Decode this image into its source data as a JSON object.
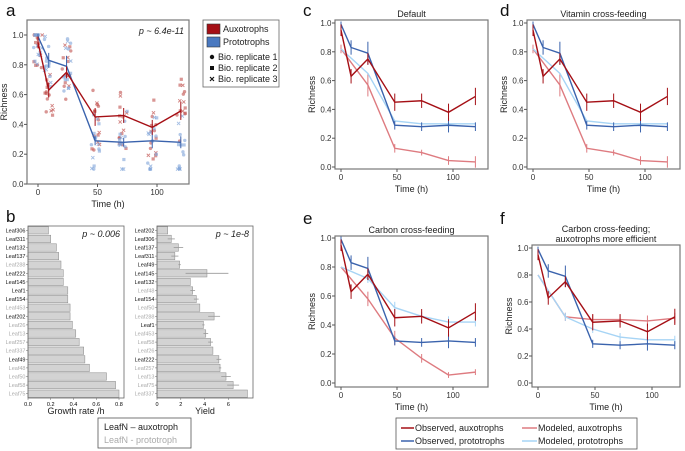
{
  "panels": {
    "a": "a",
    "b": "b",
    "c": "c",
    "d": "d",
    "e": "e",
    "f": "f"
  },
  "legend_a": {
    "aux": "Auxotrophs",
    "proto": "Prototrophs",
    "rep1": "Bio. replicate 1",
    "rep2": "Bio. replicate 2",
    "rep3": "Bio. replicate 3"
  },
  "legend_b": {
    "aux": "LeafN – auxotroph",
    "proto": "LeafN - prototroph"
  },
  "legend_bottom": {
    "obs_aux": "Observed, auxotrophs",
    "obs_proto": "Observed, prototrophs",
    "mod_aux": "Modeled, auxotrophs",
    "mod_proto": "Modeled, prototrophs"
  },
  "colors": {
    "obs_aux": "#a50f15",
    "obs_proto": "#3a63ad",
    "mod_aux": "#de7b80",
    "mod_proto": "#a6d4f5",
    "proto_label": "#aaaaaa"
  },
  "chart_data": [
    {
      "id": "a",
      "type": "line",
      "title": "",
      "xlabel": "Time (h)",
      "ylabel": "Richness",
      "annotation": "p ~ 6.4e-11",
      "xlim": [
        -5,
        125
      ],
      "ylim": [
        0,
        1.05
      ],
      "xticks": [
        0,
        50,
        100
      ],
      "yticks": [
        "0.0",
        "0.2",
        "0.4",
        "0.6",
        "0.8",
        "1.0"
      ],
      "x": [
        0,
        9,
        24,
        48,
        72,
        96,
        120
      ],
      "series": [
        {
          "name": "Auxotrophs",
          "key": "obs_aux",
          "values": [
            0.95,
            0.63,
            0.75,
            0.45,
            0.46,
            0.38,
            0.49
          ],
          "err": [
            0.04,
            0.05,
            0.04,
            0.06,
            0.05,
            0.05,
            0.06
          ]
        },
        {
          "name": "Prototrophs",
          "key": "obs_proto",
          "values": [
            0.99,
            0.83,
            0.79,
            0.29,
            0.28,
            0.29,
            0.28
          ],
          "err": [
            0.02,
            0.05,
            0.07,
            0.03,
            0.03,
            0.05,
            0.04
          ]
        }
      ]
    },
    {
      "id": "c",
      "type": "line",
      "title": "Default",
      "xlabel": "Time (h)",
      "ylabel": "Richness",
      "xlim": [
        -5,
        125
      ],
      "ylim": [
        0,
        1
      ],
      "xticks": [
        0,
        50,
        100
      ],
      "yticks": [
        "0.0",
        "0.2",
        "0.4",
        "0.6",
        "0.8",
        "1.0"
      ],
      "series": [
        {
          "name": "Observed, auxotrophs",
          "key": "obs_aux",
          "x": [
            0,
            9,
            24,
            48,
            72,
            96,
            120
          ],
          "values": [
            0.95,
            0.63,
            0.75,
            0.45,
            0.46,
            0.38,
            0.49
          ],
          "err": [
            0.04,
            0.05,
            0.04,
            0.06,
            0.05,
            0.06,
            0.06
          ]
        },
        {
          "name": "Observed, prototrophs",
          "key": "obs_proto",
          "x": [
            0,
            9,
            24,
            48,
            72,
            96,
            120
          ],
          "values": [
            0.99,
            0.83,
            0.79,
            0.29,
            0.28,
            0.29,
            0.28
          ],
          "err": [
            0.02,
            0.05,
            0.08,
            0.03,
            0.03,
            0.05,
            0.03
          ]
        },
        {
          "name": "Modeled, auxotrophs",
          "key": "mod_aux",
          "x": [
            0,
            24,
            48,
            72,
            96,
            120
          ],
          "values": [
            0.82,
            0.57,
            0.13,
            0.1,
            0.045,
            0.035
          ],
          "err": [
            0.03,
            0.08,
            0.03,
            0.02,
            0.03,
            0.04
          ]
        },
        {
          "name": "Modeled, prototrophs",
          "key": "mod_proto",
          "x": [
            0,
            24,
            48,
            72,
            96,
            120
          ],
          "values": [
            0.82,
            0.65,
            0.32,
            0.3,
            0.3,
            0.3
          ],
          "err": [
            0,
            0,
            0,
            0,
            0,
            0
          ]
        }
      ]
    },
    {
      "id": "d",
      "type": "line",
      "title": "Vitamin cross-feeding",
      "xlabel": "Time (h)",
      "ylabel": "Richness",
      "xlim": [
        -5,
        125
      ],
      "ylim": [
        0,
        1
      ],
      "xticks": [
        0,
        50,
        100
      ],
      "yticks": [
        "0.0",
        "0.2",
        "0.4",
        "0.6",
        "0.8",
        "1.0"
      ],
      "series": [
        {
          "name": "Observed, auxotrophs",
          "key": "obs_aux",
          "x": [
            0,
            9,
            24,
            48,
            72,
            96,
            120
          ],
          "values": [
            0.95,
            0.63,
            0.75,
            0.45,
            0.46,
            0.38,
            0.49
          ],
          "err": [
            0.04,
            0.05,
            0.04,
            0.06,
            0.05,
            0.06,
            0.06
          ]
        },
        {
          "name": "Observed, prototrophs",
          "key": "obs_proto",
          "x": [
            0,
            9,
            24,
            48,
            72,
            96,
            120
          ],
          "values": [
            0.99,
            0.83,
            0.79,
            0.29,
            0.28,
            0.29,
            0.28
          ],
          "err": [
            0.02,
            0.05,
            0.08,
            0.03,
            0.03,
            0.05,
            0.03
          ]
        },
        {
          "name": "Modeled, auxotrophs",
          "key": "mod_aux",
          "x": [
            0,
            24,
            48,
            72,
            96,
            120
          ],
          "values": [
            0.82,
            0.57,
            0.13,
            0.1,
            0.045,
            0.035
          ],
          "err": [
            0.03,
            0.08,
            0.03,
            0.02,
            0.03,
            0.04
          ]
        },
        {
          "name": "Modeled, prototrophs",
          "key": "mod_proto",
          "x": [
            0,
            24,
            48,
            72,
            96,
            120
          ],
          "values": [
            0.82,
            0.65,
            0.32,
            0.3,
            0.3,
            0.3
          ],
          "err": [
            0,
            0,
            0,
            0,
            0,
            0
          ]
        }
      ]
    },
    {
      "id": "e",
      "type": "line",
      "title": "Carbon cross-feeding",
      "xlabel": "Time (h)",
      "ylabel": "Richness",
      "xlim": [
        -5,
        125
      ],
      "ylim": [
        0,
        1
      ],
      "xticks": [
        0,
        50,
        100
      ],
      "yticks": [
        "0.0",
        "0.2",
        "0.4",
        "0.6",
        "0.8",
        "1.0"
      ],
      "series": [
        {
          "name": "Observed, auxotrophs",
          "key": "obs_aux",
          "x": [
            0,
            9,
            24,
            48,
            72,
            96,
            120
          ],
          "values": [
            0.95,
            0.63,
            0.75,
            0.45,
            0.46,
            0.38,
            0.49
          ],
          "err": [
            0.04,
            0.05,
            0.04,
            0.06,
            0.05,
            0.06,
            0.06
          ]
        },
        {
          "name": "Observed, prototrophs",
          "key": "obs_proto",
          "x": [
            0,
            9,
            24,
            48,
            72,
            96,
            120
          ],
          "values": [
            0.99,
            0.83,
            0.79,
            0.29,
            0.28,
            0.29,
            0.28
          ],
          "err": [
            0.02,
            0.05,
            0.08,
            0.03,
            0.03,
            0.05,
            0.03
          ]
        },
        {
          "name": "Modeled, auxotrophs",
          "key": "mod_aux",
          "x": [
            0,
            24,
            48,
            72,
            96,
            120
          ],
          "values": [
            0.8,
            0.58,
            0.31,
            0.17,
            0.055,
            0.075
          ],
          "err": [
            0,
            0.05,
            0.05,
            0.03,
            0.02,
            0.02
          ]
        },
        {
          "name": "Modeled, prototrophs",
          "key": "mod_proto",
          "x": [
            0,
            24,
            48,
            72,
            96,
            120
          ],
          "values": [
            0.8,
            0.72,
            0.52,
            0.46,
            0.42,
            0.42
          ],
          "err": [
            0,
            0.03,
            0.04,
            0.03,
            0.04,
            0.03
          ]
        }
      ]
    },
    {
      "id": "f",
      "type": "line",
      "title": "Carbon cross-feeding;",
      "title2": "auxotrophs more efficient",
      "xlabel": "Time (h)",
      "ylabel": "Richness",
      "xlim": [
        -5,
        125
      ],
      "ylim": [
        0,
        1
      ],
      "xticks": [
        0,
        50,
        100
      ],
      "yticks": [
        "0.0",
        "0.2",
        "0.4",
        "0.6",
        "0.8",
        "1.0"
      ],
      "series": [
        {
          "name": "Observed, auxotrophs",
          "key": "obs_aux",
          "x": [
            0,
            9,
            24,
            48,
            72,
            96,
            120
          ],
          "values": [
            0.95,
            0.63,
            0.75,
            0.45,
            0.46,
            0.38,
            0.49
          ],
          "err": [
            0.04,
            0.05,
            0.04,
            0.06,
            0.05,
            0.06,
            0.06
          ]
        },
        {
          "name": "Observed, prototrophs",
          "key": "obs_proto",
          "x": [
            0,
            9,
            24,
            48,
            72,
            96,
            120
          ],
          "values": [
            0.99,
            0.83,
            0.79,
            0.29,
            0.28,
            0.29,
            0.28
          ],
          "err": [
            0.02,
            0.05,
            0.08,
            0.03,
            0.03,
            0.05,
            0.03
          ]
        },
        {
          "name": "Modeled, auxotrophs",
          "key": "mod_aux",
          "x": [
            0,
            24,
            48,
            72,
            96,
            120
          ],
          "values": [
            0.8,
            0.49,
            0.47,
            0.47,
            0.46,
            0.48
          ],
          "err": [
            0,
            0.03,
            0.04,
            0.04,
            0.04,
            0.04
          ]
        },
        {
          "name": "Modeled, prototrophs",
          "key": "mod_proto",
          "x": [
            0,
            24,
            48,
            72,
            96,
            120
          ],
          "values": [
            0.8,
            0.49,
            0.4,
            0.34,
            0.32,
            0.32
          ],
          "err": [
            0,
            0.03,
            0.03,
            0.03,
            0.03,
            0.03
          ]
        }
      ]
    },
    {
      "id": "b1",
      "type": "bar",
      "orientation": "horizontal",
      "xlabel": "Growth rate /h",
      "annotation": "p ~ 0.006",
      "xlim": [
        0,
        0.82
      ],
      "xticks": [
        "0.0",
        "0.2",
        "0.4",
        "0.6",
        "0.8"
      ],
      "categories": [
        "Leaf306",
        "Leaf311",
        "Leaf132",
        "Leaf137",
        "Leaf288",
        "Leaf222",
        "Leaf145",
        "Leaf1",
        "Leaf154",
        "Leaf453",
        "Leaf202",
        "Leaf26",
        "Leaf13",
        "Leaf257",
        "Leaf337",
        "Leaf49",
        "Leaf48",
        "Leaf50",
        "Leaf58",
        "Leaf75"
      ],
      "auxotroph": [
        true,
        true,
        true,
        true,
        false,
        true,
        true,
        true,
        true,
        false,
        true,
        false,
        false,
        false,
        false,
        true,
        false,
        false,
        false,
        false
      ],
      "values": [
        0.18,
        0.2,
        0.25,
        0.27,
        0.29,
        0.31,
        0.31,
        0.35,
        0.35,
        0.37,
        0.37,
        0.39,
        0.42,
        0.45,
        0.49,
        0.5,
        0.54,
        0.69,
        0.77,
        0.8
      ]
    },
    {
      "id": "b2",
      "type": "bar",
      "orientation": "horizontal",
      "xlabel": "Yield",
      "annotation": "p ~ 1e-8",
      "xlim": [
        0,
        7.7
      ],
      "xticks": [
        "0",
        "2",
        "4",
        "6"
      ],
      "categories": [
        "Leaf202",
        "Leaf306",
        "Leaf137",
        "Leaf311",
        "Leaf49",
        "Leaf145",
        "Leaf132",
        "Leaf48",
        "Leaf154",
        "Leaf50",
        "Leaf288",
        "Leaf1",
        "Leaf453",
        "Leaf58",
        "Leaf26",
        "Leaf222",
        "Leaf257",
        "Leaf13",
        "Leaf75",
        "Leaf337"
      ],
      "auxotroph": [
        true,
        true,
        true,
        true,
        true,
        true,
        true,
        false,
        true,
        false,
        false,
        true,
        false,
        false,
        false,
        true,
        false,
        false,
        false,
        false
      ],
      "values": [
        0.9,
        1.2,
        1.8,
        1.5,
        1.9,
        4.2,
        2.8,
        3.0,
        3.3,
        3.6,
        4.8,
        3.9,
        4.1,
        4.5,
        4.7,
        5.2,
        5.3,
        5.8,
        6.4,
        7.6
      ],
      "err": [
        0,
        0.3,
        0.4,
        0.3,
        0.1,
        1.8,
        0,
        0.2,
        0.2,
        0,
        0.5,
        0.1,
        0.2,
        0.2,
        0,
        0.2,
        0.1,
        0.4,
        0.5,
        0
      ]
    }
  ]
}
